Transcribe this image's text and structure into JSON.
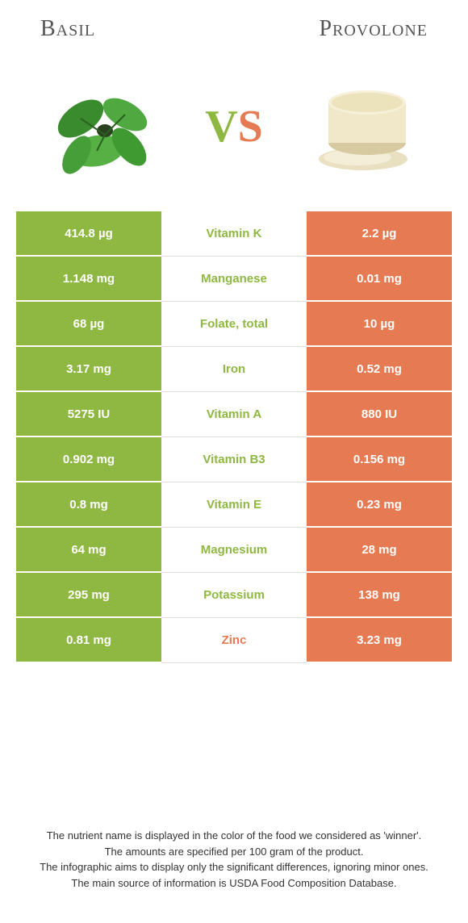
{
  "header": {
    "left_title": "Basil",
    "right_title": "Provolone"
  },
  "vs": {
    "v": "V",
    "s": "S"
  },
  "colors": {
    "basil": "#8fb842",
    "provolone": "#e67a52",
    "mid_bg": "#ffffff",
    "row_border": "#dddddd"
  },
  "rows": [
    {
      "left": "414.8 µg",
      "label": "Vitamin K",
      "right": "2.2 µg",
      "winner": "basil"
    },
    {
      "left": "1.148 mg",
      "label": "Manganese",
      "right": "0.01 mg",
      "winner": "basil"
    },
    {
      "left": "68 µg",
      "label": "Folate, total",
      "right": "10 µg",
      "winner": "basil"
    },
    {
      "left": "3.17 mg",
      "label": "Iron",
      "right": "0.52 mg",
      "winner": "basil"
    },
    {
      "left": "5275 IU",
      "label": "Vitamin A",
      "right": "880 IU",
      "winner": "basil"
    },
    {
      "left": "0.902 mg",
      "label": "Vitamin B3",
      "right": "0.156 mg",
      "winner": "basil"
    },
    {
      "left": "0.8 mg",
      "label": "Vitamin E",
      "right": "0.23 mg",
      "winner": "basil"
    },
    {
      "left": "64 mg",
      "label": "Magnesium",
      "right": "28 mg",
      "winner": "basil"
    },
    {
      "left": "295 mg",
      "label": "Potassium",
      "right": "138 mg",
      "winner": "basil"
    },
    {
      "left": "0.81 mg",
      "label": "Zinc",
      "right": "3.23 mg",
      "winner": "provolone"
    }
  ],
  "footer": {
    "line1": "The nutrient name is displayed in the color of the food we considered as 'winner'.",
    "line2": "The amounts are specified per 100 gram of the product.",
    "line3": "The infographic aims to display only the significant differences, ignoring minor ones.",
    "line4": "The main source of information is USDA Food Composition Database."
  }
}
